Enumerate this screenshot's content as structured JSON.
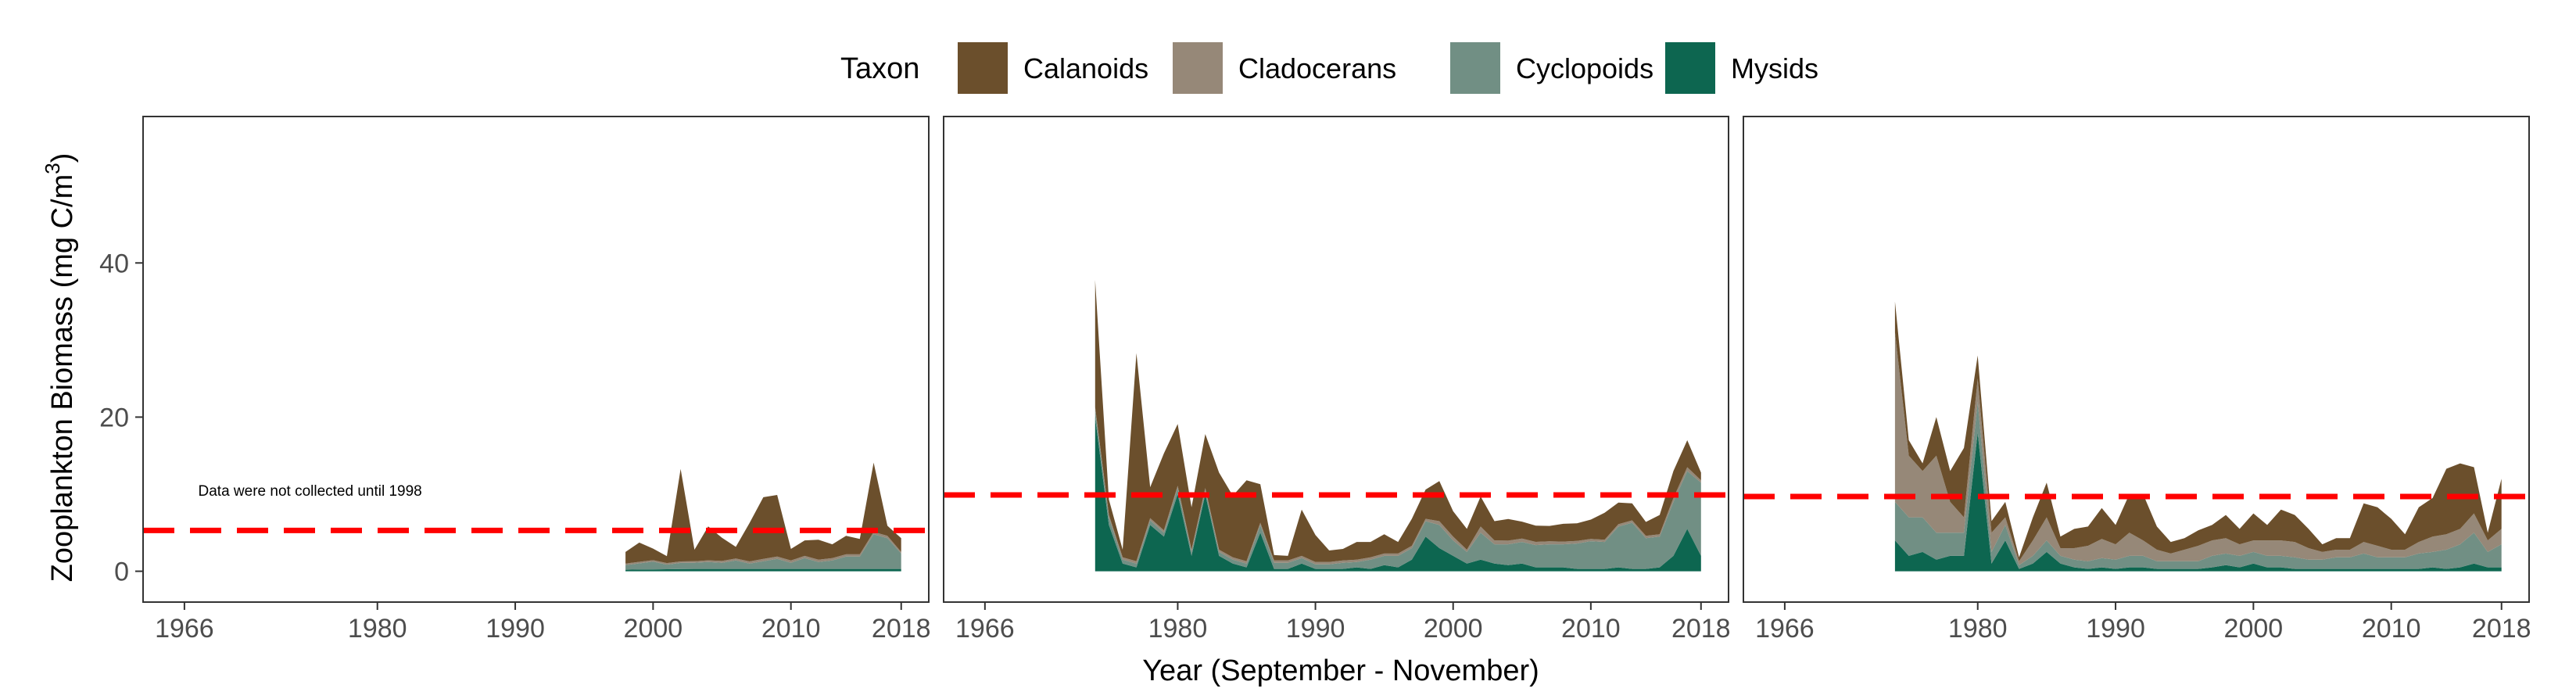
{
  "chart_data": {
    "type": "area",
    "legend": {
      "title": "Taxon",
      "placement": "top",
      "items": [
        {
          "name": "Calanoids",
          "color": "#6b4f2c"
        },
        {
          "name": "Cladocerans",
          "color": "#968878"
        },
        {
          "name": "Cyclopoids",
          "color": "#718f84"
        },
        {
          "name": "Mysids",
          "color": "#0d6650"
        }
      ]
    },
    "xlabel": "Year (September - November)",
    "ylabel_main": "Zooplankton Biomass (mg C/m",
    "ylabel_sup": "3",
    "ylabel_tail": ")",
    "xlim": [
      1963,
      2020
    ],
    "ylim": [
      -4,
      59
    ],
    "xticks": [
      1966,
      1980,
      1990,
      2000,
      2010,
      2018
    ],
    "yticks": [
      0,
      20,
      40
    ],
    "grid": false,
    "panels": [
      {
        "annotation": "Data were not collected until 1998",
        "annotation_pos": {
          "x": 1967,
          "y": 9.8
        },
        "reference_line": 5.3,
        "series": {
          "Mysids": {
            "x": [
              1998,
              2003,
              2008,
              2013,
              2018
            ],
            "y": [
              0.2,
              0.3,
              0.3,
              0.3,
              0.3
            ]
          },
          "Cyclopoids": {
            "x": [
              1998,
              1999,
              2000,
              2001,
              2002,
              2003,
              2004,
              2005,
              2006,
              2007,
              2008,
              2009,
              2010,
              2011,
              2012,
              2013,
              2014,
              2015,
              2016,
              2017,
              2018
            ],
            "y": [
              0.6,
              0.8,
              1.0,
              0.6,
              0.8,
              0.8,
              0.9,
              0.8,
              1.1,
              0.7,
              1.0,
              1.3,
              0.8,
              1.4,
              0.9,
              1.1,
              1.6,
              1.6,
              4.5,
              4.0,
              2.0
            ]
          },
          "Cladocerans": {
            "x": [
              1998,
              2003,
              2008,
              2013,
              2016,
              2017,
              2018
            ],
            "y": [
              0.2,
              0.2,
              0.3,
              0.3,
              0.3,
              0.3,
              0.2
            ]
          },
          "Calanoids": {
            "x": [
              1998,
              1999,
              2000,
              2001,
              2002,
              2003,
              2004,
              2005,
              2006,
              2007,
              2008,
              2009,
              2010,
              2011,
              2012,
              2013,
              2014,
              2015,
              2016,
              2017,
              2018
            ],
            "y": [
              1.5,
              2.5,
              1.5,
              0.9,
              12.0,
              1.5,
              4.4,
              3.0,
              1.5,
              5.0,
              8.0,
              8.0,
              1.5,
              2.0,
              2.6,
              1.8,
              2.4,
              2.0,
              9.0,
              1.3,
              1.8
            ]
          }
        }
      },
      {
        "reference_line": 9.9,
        "series": {
          "Mysids": {
            "x": [
              1974,
              1975,
              1976,
              1977,
              1978,
              1979,
              1980,
              1981,
              1982,
              1983,
              1984,
              1985,
              1986,
              1987,
              1988,
              1989,
              1990,
              1991,
              1992,
              1993,
              1994,
              1995,
              1996,
              1997,
              1998,
              1999,
              2000,
              2001,
              2002,
              2003,
              2004,
              2005,
              2006,
              2007,
              2008,
              2009,
              2010,
              2011,
              2012,
              2013,
              2014,
              2015,
              2016,
              2017,
              2018
            ],
            "y": [
              20.0,
              6.0,
              1.0,
              0.5,
              6.0,
              4.5,
              10.0,
              2.0,
              10.0,
              2.0,
              1.0,
              0.5,
              5.0,
              0.3,
              0.3,
              1.0,
              0.3,
              0.3,
              0.3,
              0.5,
              0.3,
              0.8,
              0.5,
              1.5,
              4.5,
              3.0,
              2.0,
              1.0,
              1.5,
              1.0,
              0.8,
              1.0,
              0.5,
              0.5,
              0.5,
              0.3,
              0.3,
              0.3,
              0.5,
              0.3,
              0.3,
              0.5,
              2.0,
              5.5,
              2.0
            ]
          },
          "Cyclopoids": {
            "x": [
              1974,
              1975,
              1976,
              1977,
              1978,
              1979,
              1980,
              1981,
              1982,
              1983,
              1984,
              1985,
              1986,
              1987,
              1988,
              1989,
              1990,
              1991,
              1992,
              1993,
              1994,
              1995,
              1996,
              1997,
              1998,
              1999,
              2000,
              2001,
              2002,
              2003,
              2004,
              2005,
              2006,
              2007,
              2008,
              2009,
              2010,
              2011,
              2012,
              2013,
              2014,
              2015,
              2016,
              2017,
              2018
            ],
            "y": [
              1.0,
              1.0,
              0.5,
              0.5,
              0.6,
              0.5,
              0.8,
              0.5,
              0.5,
              0.5,
              0.5,
              0.5,
              1.0,
              0.8,
              0.8,
              0.7,
              0.6,
              0.6,
              0.8,
              0.7,
              1.2,
              1.2,
              1.5,
              1.5,
              2.0,
              3.0,
              2.0,
              1.5,
              3.5,
              2.5,
              2.7,
              2.8,
              2.9,
              3.0,
              3.0,
              3.3,
              3.6,
              3.5,
              5.3,
              6.0,
              4.0,
              4.0,
              7.0,
              7.5,
              9.5
            ]
          },
          "Cladocerans": {
            "x": [
              1974,
              1980,
              1990,
              1998,
              1999,
              2000,
              2001,
              2002,
              2003,
              2010,
              2015,
              2016,
              2017,
              2018
            ],
            "y": [
              0.3,
              0.3,
              0.3,
              0.3,
              0.5,
              0.5,
              0.3,
              0.8,
              0.5,
              0.3,
              0.3,
              0.5,
              0.5,
              0.3
            ]
          },
          "Calanoids": {
            "x": [
              1974,
              1975,
              1976,
              1977,
              1978,
              1979,
              1980,
              1981,
              1982,
              1983,
              1984,
              1985,
              1986,
              1987,
              1988,
              1989,
              1990,
              1991,
              1992,
              1993,
              1994,
              1995,
              1996,
              1997,
              1998,
              1999,
              2000,
              2001,
              2002,
              2003,
              2004,
              2005,
              2006,
              2007,
              2008,
              2009,
              2010,
              2011,
              2012,
              2013,
              2014,
              2015,
              2016,
              2017,
              2018
            ],
            "y": [
              16.5,
              2.0,
              1.0,
              27.0,
              4.0,
              10.0,
              8.0,
              5.5,
              7.0,
              10.0,
              8.0,
              10.5,
              5.0,
              0.7,
              0.6,
              6.0,
              3.5,
              1.5,
              1.5,
              2.3,
              2.0,
              2.5,
              1.5,
              3.5,
              3.8,
              5.2,
              3.3,
              2.7,
              3.9,
              2.5,
              2.8,
              2.2,
              2.1,
              2.0,
              2.3,
              2.3,
              2.5,
              3.5,
              2.8,
              2.2,
              1.8,
              2.5,
              3.5,
              3.5,
              1.0
            ]
          }
        }
      },
      {
        "reference_line": 9.7,
        "series": {
          "Mysids": {
            "x": [
              1974,
              1975,
              1976,
              1977,
              1978,
              1979,
              1980,
              1981,
              1982,
              1983,
              1984,
              1985,
              1986,
              1987,
              1988,
              1989,
              1990,
              1991,
              1992,
              1993,
              1994,
              1995,
              1996,
              1997,
              1998,
              1999,
              2000,
              2001,
              2002,
              2003,
              2004,
              2005,
              2006,
              2007,
              2008,
              2009,
              2010,
              2011,
              2012,
              2013,
              2014,
              2015,
              2016,
              2017,
              2018
            ],
            "y": [
              4.0,
              2.0,
              2.5,
              1.5,
              2.0,
              2.0,
              18.0,
              1.0,
              4.0,
              0.3,
              1.0,
              2.5,
              1.0,
              0.5,
              0.3,
              0.5,
              0.3,
              0.5,
              0.5,
              0.3,
              0.3,
              0.3,
              0.3,
              0.5,
              0.8,
              0.5,
              1.0,
              0.5,
              0.5,
              0.3,
              0.3,
              0.3,
              0.3,
              0.3,
              0.3,
              0.3,
              0.3,
              0.3,
              0.3,
              0.5,
              0.3,
              0.5,
              1.0,
              0.5,
              0.5
            ]
          },
          "Cyclopoids": {
            "x": [
              1974,
              1975,
              1976,
              1977,
              1978,
              1979,
              1980,
              1981,
              1982,
              1983,
              1984,
              1985,
              1986,
              1987,
              1988,
              1989,
              1990,
              1991,
              1992,
              1993,
              1994,
              1995,
              1996,
              1997,
              1998,
              1999,
              2000,
              2001,
              2002,
              2003,
              2004,
              2005,
              2006,
              2007,
              2008,
              2009,
              2010,
              2011,
              2012,
              2013,
              2014,
              2015,
              2016,
              2017,
              2018
            ],
            "y": [
              5.0,
              5.0,
              4.5,
              3.5,
              3.0,
              3.0,
              4.0,
              1.5,
              2.0,
              0.5,
              1.0,
              1.5,
              1.0,
              1.0,
              1.0,
              1.2,
              1.2,
              1.5,
              1.5,
              1.0,
              1.0,
              1.0,
              1.0,
              1.5,
              1.5,
              1.5,
              1.5,
              1.5,
              1.5,
              1.5,
              1.2,
              1.2,
              1.5,
              1.5,
              2.0,
              1.5,
              1.5,
              1.5,
              2.0,
              2.0,
              2.5,
              3.0,
              4.0,
              2.0,
              3.0
            ]
          },
          "Cladocerans": {
            "x": [
              1974,
              1975,
              1976,
              1977,
              1978,
              1979,
              1980,
              1981,
              1982,
              1983,
              1984,
              1985,
              1986,
              1987,
              1988,
              1989,
              1990,
              1991,
              1992,
              1993,
              1994,
              1995,
              1996,
              1997,
              1998,
              1999,
              2000,
              2001,
              2002,
              2003,
              2004,
              2005,
              2006,
              2007,
              2008,
              2009,
              2010,
              2011,
              2012,
              2013,
              2014,
              2015,
              2016,
              2017,
              2018
            ],
            "y": [
              22.0,
              8.0,
              6.0,
              10.0,
              4.0,
              2.0,
              3.0,
              2.5,
              1.0,
              0.5,
              2.0,
              3.0,
              1.0,
              1.5,
              2.0,
              2.5,
              2.0,
              3.0,
              2.0,
              1.5,
              1.0,
              1.5,
              2.0,
              2.0,
              2.0,
              1.5,
              1.5,
              2.0,
              2.0,
              2.0,
              1.5,
              1.0,
              1.0,
              1.0,
              1.5,
              1.5,
              1.0,
              1.0,
              1.5,
              2.0,
              2.0,
              2.0,
              2.5,
              1.5,
              2.0
            ]
          },
          "Calanoids": {
            "x": [
              1974,
              1975,
              1976,
              1977,
              1978,
              1979,
              1980,
              1981,
              1982,
              1983,
              1984,
              1985,
              1986,
              1987,
              1988,
              1989,
              1990,
              1991,
              1992,
              1993,
              1994,
              1995,
              1996,
              1997,
              1998,
              1999,
              2000,
              2001,
              2002,
              2003,
              2004,
              2005,
              2006,
              2007,
              2008,
              2009,
              2010,
              2011,
              2012,
              2013,
              2014,
              2015,
              2016,
              2017,
              2018
            ],
            "y": [
              4.0,
              2.0,
              1.0,
              5.0,
              4.0,
              9.0,
              3.0,
              1.5,
              2.0,
              0.5,
              3.0,
              4.5,
              1.5,
              2.5,
              2.5,
              4.0,
              2.5,
              5.0,
              6.0,
              3.0,
              1.5,
              1.5,
              2.0,
              2.0,
              3.0,
              2.0,
              3.5,
              2.0,
              4.0,
              3.5,
              2.5,
              1.0,
              1.5,
              1.5,
              5.0,
              5.0,
              4.0,
              2.0,
              4.5,
              5.0,
              8.5,
              8.5,
              6.0,
              1.0,
              6.5
            ]
          }
        }
      }
    ]
  }
}
